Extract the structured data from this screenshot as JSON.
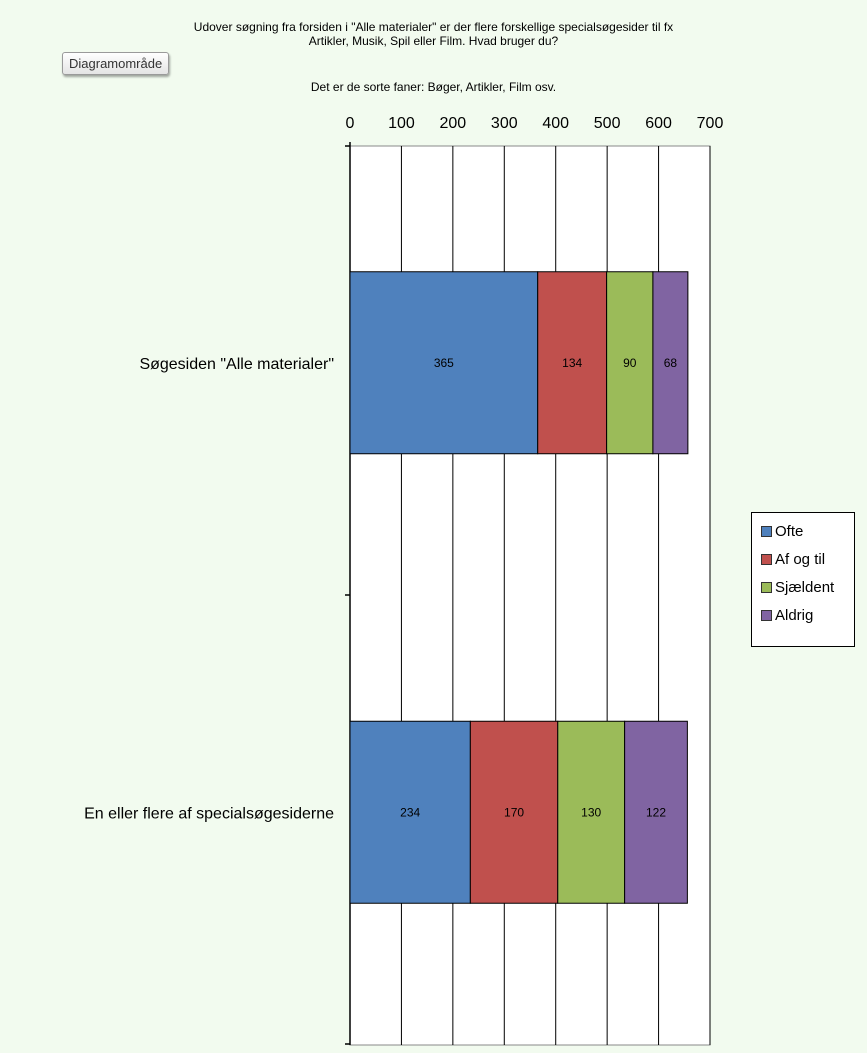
{
  "tooltip": "Diagramområde",
  "chart_data": {
    "type": "bar",
    "orientation": "horizontal",
    "stacked": true,
    "title_lines": [
      "Udover søgning fra forsiden i \"Alle materialer\"  er der flere forskellige specialsøgesider til fx",
      "Artikler, Musik,  Spil eller Film.  Hvad bruger du?",
      "Det  er de sorte faner: Bøger, Artikler, Film  osv."
    ],
    "categories": [
      "Søgesiden \"Alle materialer\"",
      "En eller flere af specialsøgesiderne"
    ],
    "series": [
      {
        "name": "Ofte",
        "values": [
          365,
          234
        ],
        "color": "#4f81bd"
      },
      {
        "name": "Af og til",
        "values": [
          134,
          170
        ],
        "color": "#c0504d"
      },
      {
        "name": "Sjældent",
        "values": [
          90,
          130
        ],
        "color": "#9bbb59"
      },
      {
        "name": "Aldrig",
        "values": [
          68,
          122
        ],
        "color": "#8064a2"
      }
    ],
    "xlim": [
      0,
      700
    ],
    "xticks": [
      0,
      100,
      200,
      300,
      400,
      500,
      600,
      700
    ],
    "x_axis_position": "top",
    "grid": true,
    "legend_position": "right"
  }
}
